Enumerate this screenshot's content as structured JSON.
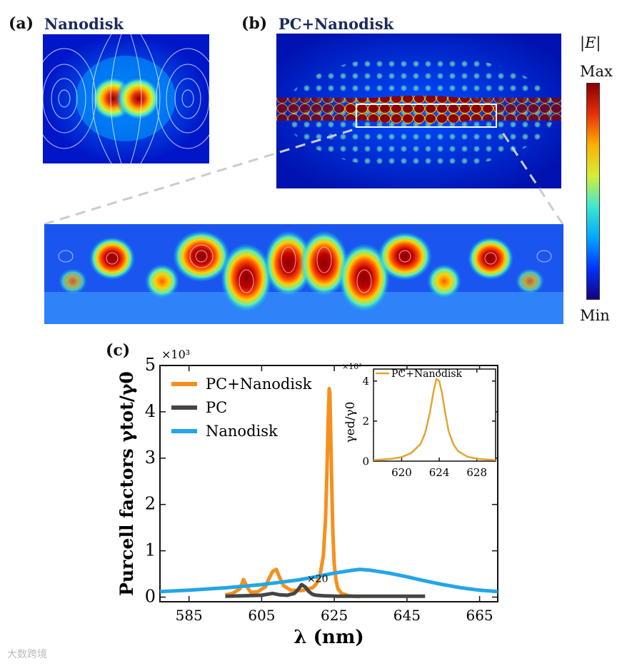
{
  "panel_a": {
    "letter": "(a)",
    "title": "Nanodisk"
  },
  "panel_b": {
    "letter": "(b)",
    "title": "PC+Nanodisk"
  },
  "colorbar": {
    "title": "|E|",
    "max_label": "Max",
    "min_label": "Min",
    "stops": [
      "#16007e",
      "#0033ff",
      "#00a8ff",
      "#3ee8d0",
      "#d4ef3a",
      "#ffb000",
      "#e8300a",
      "#8a0000"
    ]
  },
  "panel_c": {
    "letter": "(c)"
  },
  "chart_data": [
    {
      "type": "line",
      "xlabel": "λ (nm)",
      "ylabel": "Purcell factors γtot/γ0",
      "y_multiplier": "×10³",
      "xlim": [
        577,
        670
      ],
      "ylim": [
        -0.1,
        5
      ],
      "x_ticks": [
        585,
        605,
        625,
        645,
        665
      ],
      "y_ticks": [
        0,
        1,
        2,
        3,
        4,
        5
      ],
      "annotation": "×20",
      "series": [
        {
          "name": "PC+Nanodisk",
          "color": "#f5901e",
          "x": [
            595,
            597,
            599,
            600,
            601,
            602,
            604,
            606,
            607,
            608,
            609,
            610,
            611,
            613,
            616,
            619,
            620,
            621,
            622,
            622.6,
            623,
            623.3,
            623.6,
            623.8,
            624,
            624.3,
            624.6,
            625,
            625.5,
            626,
            627,
            629,
            632
          ],
          "y": [
            0.05,
            0.08,
            0.18,
            0.38,
            0.22,
            0.1,
            0.12,
            0.22,
            0.4,
            0.55,
            0.6,
            0.42,
            0.25,
            0.15,
            0.14,
            0.2,
            0.28,
            0.45,
            0.9,
            1.7,
            2.8,
            3.8,
            4.5,
            4.4,
            3.6,
            2.4,
            1.4,
            0.7,
            0.35,
            0.18,
            0.08,
            0.03,
            0.01
          ]
        },
        {
          "name": "PC",
          "color": "#454545",
          "x": [
            595,
            600,
            605,
            608,
            610,
            612,
            614,
            615,
            616,
            617,
            618,
            619,
            620,
            622,
            626,
            632,
            640,
            650
          ],
          "y": [
            0.02,
            0.03,
            0.04,
            0.08,
            0.05,
            0.04,
            0.08,
            0.16,
            0.27,
            0.22,
            0.12,
            0.06,
            0.04,
            0.03,
            0.02,
            0.02,
            0.02,
            0.02
          ]
        },
        {
          "name": "Nanodisk",
          "color": "#23a6e6",
          "x": [
            577,
            585,
            595,
            605,
            615,
            620,
            625,
            630,
            632,
            635,
            640,
            645,
            650,
            655,
            660,
            665,
            670
          ],
          "y": [
            0.12,
            0.15,
            0.2,
            0.27,
            0.37,
            0.44,
            0.52,
            0.58,
            0.6,
            0.58,
            0.52,
            0.44,
            0.35,
            0.27,
            0.2,
            0.15,
            0.12
          ]
        }
      ]
    },
    {
      "type": "line",
      "ylabel": "γed/γ0",
      "y_multiplier": "×10³",
      "xlim": [
        617,
        630
      ],
      "ylim": [
        0,
        4.6
      ],
      "x_ticks": [
        620,
        624,
        628
      ],
      "y_ticks": [
        0,
        2,
        4
      ],
      "series": [
        {
          "name": "PC+Nanodisk",
          "color": "#e2a52f",
          "x": [
            617,
            619,
            620,
            621,
            622,
            622.5,
            623,
            623.4,
            623.7,
            624,
            624.3,
            624.6,
            625,
            625.5,
            626,
            627,
            628,
            630
          ],
          "y": [
            0.05,
            0.12,
            0.2,
            0.4,
            0.85,
            1.4,
            2.4,
            3.5,
            4.1,
            4.0,
            3.4,
            2.5,
            1.5,
            0.85,
            0.5,
            0.22,
            0.12,
            0.05
          ]
        }
      ]
    }
  ],
  "watermark": "大数跨境"
}
